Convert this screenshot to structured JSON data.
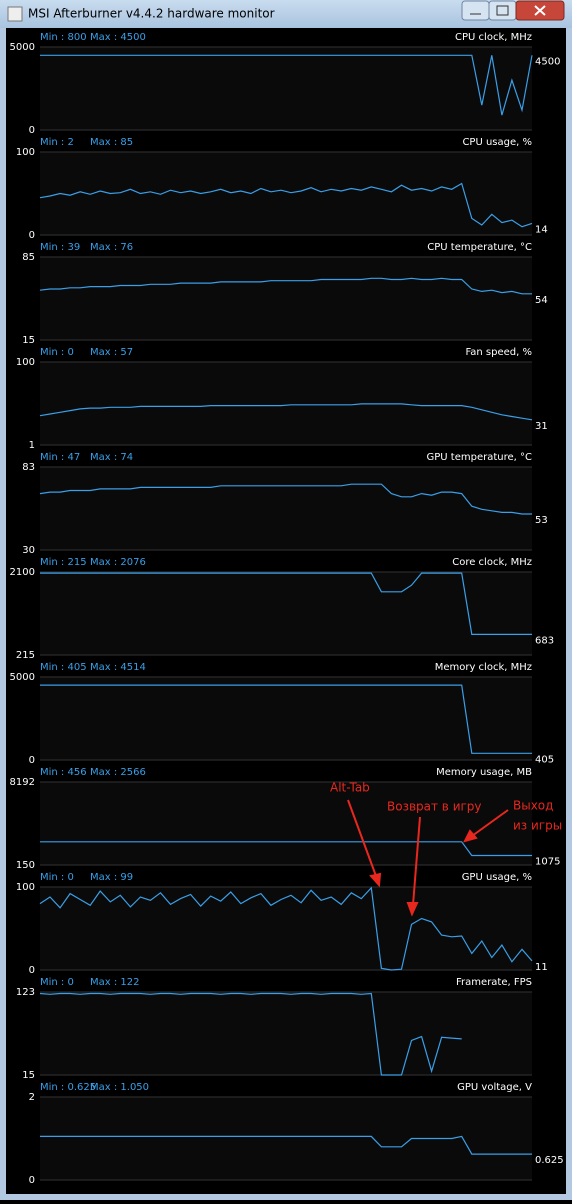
{
  "window": {
    "title": "MSI Afterburner v4.4.2 hardware monitor"
  },
  "annotations": [
    "Alt-Tab",
    "Возврат в игру",
    "Выход",
    "из игры"
  ],
  "chart_data": [
    {
      "type": "line",
      "title": "CPU clock, MHz",
      "min_text": "Min : 800",
      "max_text": "Max : 4500",
      "current": 4500,
      "ylim": [
        0,
        5000
      ],
      "yticks": [
        0,
        5000
      ],
      "color": "#3a9fe8",
      "values": [
        4500,
        4500,
        4500,
        4500,
        4500,
        4500,
        4500,
        4500,
        4500,
        4500,
        4500,
        4500,
        4500,
        4500,
        4500,
        4500,
        4500,
        4500,
        4500,
        4500,
        4500,
        4500,
        4500,
        4500,
        4500,
        4500,
        4500,
        4500,
        4500,
        4500,
        4500,
        4500,
        4500,
        4500,
        4500,
        4500,
        4500,
        4500,
        4500,
        4500,
        4500,
        4500,
        4500,
        4500,
        1500,
        4500,
        900,
        3000,
        1200,
        4500
      ]
    },
    {
      "type": "line",
      "title": "CPU usage, %",
      "min_text": "Min : 2",
      "max_text": "Max : 85",
      "current": 14,
      "ylim": [
        0,
        100
      ],
      "yticks": [
        0,
        100
      ],
      "color": "#3a9fe8",
      "values": [
        45,
        47,
        50,
        48,
        52,
        49,
        53,
        50,
        51,
        55,
        50,
        52,
        49,
        54,
        51,
        53,
        50,
        52,
        55,
        51,
        53,
        50,
        56,
        52,
        54,
        51,
        53,
        57,
        52,
        55,
        53,
        56,
        54,
        58,
        55,
        52,
        60,
        54,
        56,
        53,
        58,
        55,
        62,
        20,
        12,
        25,
        15,
        18,
        10,
        14
      ]
    },
    {
      "type": "line",
      "title": "CPU temperature, °C",
      "min_text": "Min : 39",
      "max_text": "Max : 76",
      "current": 54,
      "ylim": [
        15,
        85
      ],
      "yticks": [
        15,
        85
      ],
      "color": "#3a9fe8",
      "values": [
        57,
        58,
        58,
        59,
        59,
        60,
        60,
        60,
        61,
        61,
        61,
        62,
        62,
        62,
        63,
        63,
        63,
        63,
        64,
        64,
        64,
        64,
        64,
        65,
        65,
        65,
        65,
        65,
        66,
        66,
        66,
        66,
        66,
        67,
        67,
        66,
        66,
        67,
        66,
        66,
        67,
        66,
        66,
        58,
        56,
        57,
        55,
        56,
        54,
        54
      ]
    },
    {
      "type": "line",
      "title": "Fan speed, %",
      "min_text": "Min : 0",
      "max_text": "Max : 57",
      "current": 31,
      "ylim": [
        1,
        100
      ],
      "yticks": [
        1,
        100
      ],
      "color": "#3a9fe8",
      "values": [
        36,
        38,
        40,
        42,
        44,
        45,
        45,
        46,
        46,
        46,
        47,
        47,
        47,
        47,
        47,
        47,
        47,
        48,
        48,
        48,
        48,
        48,
        48,
        48,
        48,
        49,
        49,
        49,
        49,
        49,
        49,
        49,
        50,
        50,
        50,
        50,
        50,
        49,
        48,
        48,
        48,
        48,
        48,
        46,
        43,
        40,
        37,
        35,
        33,
        31
      ]
    },
    {
      "type": "line",
      "title": "GPU temperature, °C",
      "min_text": "Min : 47",
      "max_text": "Max : 74",
      "current": 53,
      "ylim": [
        30,
        83
      ],
      "yticks": [
        30,
        83
      ],
      "color": "#3a9fe8",
      "values": [
        66,
        67,
        67,
        68,
        68,
        68,
        69,
        69,
        69,
        69,
        70,
        70,
        70,
        70,
        70,
        70,
        70,
        70,
        71,
        71,
        71,
        71,
        71,
        71,
        71,
        71,
        71,
        71,
        71,
        71,
        71,
        72,
        72,
        72,
        72,
        66,
        64,
        64,
        66,
        65,
        67,
        67,
        66,
        58,
        56,
        55,
        54,
        54,
        53,
        53
      ]
    },
    {
      "type": "line",
      "title": "Core clock, MHz",
      "min_text": "Min : 215",
      "max_text": "Max : 2076",
      "current": 683,
      "ylim": [
        215,
        2100
      ],
      "yticks": [
        215,
        2100
      ],
      "color": "#3a9fe8",
      "values": [
        2076,
        2076,
        2076,
        2076,
        2076,
        2076,
        2076,
        2076,
        2076,
        2076,
        2076,
        2076,
        2076,
        2076,
        2076,
        2076,
        2076,
        2076,
        2076,
        2076,
        2076,
        2076,
        2076,
        2076,
        2076,
        2076,
        2076,
        2076,
        2076,
        2076,
        2076,
        2076,
        2076,
        2076,
        1650,
        1650,
        1650,
        1800,
        2076,
        2076,
        2076,
        2076,
        2076,
        683,
        683,
        683,
        683,
        683,
        683,
        683
      ]
    },
    {
      "type": "line",
      "title": "Memory clock, MHz",
      "min_text": "Min : 405",
      "max_text": "Max : 4514",
      "current": 405,
      "ylim": [
        0,
        5000
      ],
      "yticks": [
        0,
        5000
      ],
      "color": "#3a9fe8",
      "values": [
        4514,
        4514,
        4514,
        4514,
        4514,
        4514,
        4514,
        4514,
        4514,
        4514,
        4514,
        4514,
        4514,
        4514,
        4514,
        4514,
        4514,
        4514,
        4514,
        4514,
        4514,
        4514,
        4514,
        4514,
        4514,
        4514,
        4514,
        4514,
        4514,
        4514,
        4514,
        4514,
        4514,
        4514,
        4514,
        4514,
        4514,
        4514,
        4514,
        4514,
        4514,
        4514,
        4514,
        405,
        405,
        405,
        405,
        405,
        405,
        405
      ]
    },
    {
      "type": "line",
      "title": "Memory usage, MB",
      "min_text": "Min : 456",
      "max_text": "Max : 2566",
      "current": 1075,
      "ylim": [
        150,
        8192
      ],
      "yticks": [
        150,
        8192
      ],
      "color": "#3a9fe8",
      "values": [
        2400,
        2400,
        2400,
        2400,
        2400,
        2400,
        2400,
        2400,
        2400,
        2400,
        2400,
        2400,
        2400,
        2400,
        2400,
        2400,
        2400,
        2400,
        2400,
        2400,
        2400,
        2400,
        2400,
        2400,
        2400,
        2400,
        2400,
        2400,
        2400,
        2400,
        2400,
        2400,
        2400,
        2400,
        2400,
        2400,
        2400,
        2400,
        2400,
        2400,
        2400,
        2400,
        2400,
        1075,
        1075,
        1075,
        1075,
        1075,
        1075,
        1075
      ]
    },
    {
      "type": "line",
      "title": "GPU usage, %",
      "min_text": "Min : 0",
      "max_text": "Max : 99",
      "current": 11,
      "ylim": [
        0,
        100
      ],
      "yticks": [
        0,
        100
      ],
      "color": "#3a9fe8",
      "values": [
        80,
        88,
        75,
        92,
        85,
        78,
        95,
        82,
        90,
        76,
        88,
        84,
        93,
        79,
        86,
        91,
        77,
        89,
        83,
        94,
        80,
        87,
        92,
        78,
        85,
        90,
        81,
        96,
        84,
        88,
        79,
        93,
        86,
        99,
        2,
        0,
        1,
        55,
        62,
        58,
        42,
        40,
        41,
        20,
        35,
        15,
        30,
        10,
        25,
        11
      ]
    },
    {
      "type": "line",
      "title": "Framerate, FPS",
      "min_text": "Min : 0",
      "max_text": "Max : 122",
      "current": null,
      "ylim": [
        15,
        123
      ],
      "yticks": [
        15,
        123
      ],
      "color": "#3a9fe8",
      "values": [
        121,
        120,
        121,
        121,
        120,
        121,
        121,
        120,
        121,
        121,
        121,
        120,
        121,
        121,
        120,
        121,
        121,
        121,
        120,
        121,
        121,
        120,
        121,
        121,
        121,
        120,
        121,
        121,
        120,
        121,
        121,
        121,
        120,
        121,
        15,
        15,
        15,
        60,
        65,
        20,
        64,
        63,
        62,
        null,
        null,
        null,
        null,
        null,
        null,
        null
      ]
    },
    {
      "type": "line",
      "title": "GPU voltage, V",
      "min_text": "Min : 0.625",
      "max_text": "Max : 1.050",
      "current": 0.625,
      "ylim": [
        0,
        2
      ],
      "yticks": [
        0,
        2
      ],
      "color": "#3a9fe8",
      "values": [
        1.05,
        1.05,
        1.05,
        1.05,
        1.05,
        1.05,
        1.05,
        1.05,
        1.05,
        1.05,
        1.05,
        1.05,
        1.05,
        1.05,
        1.05,
        1.05,
        1.05,
        1.05,
        1.05,
        1.05,
        1.05,
        1.05,
        1.05,
        1.05,
        1.05,
        1.05,
        1.05,
        1.05,
        1.05,
        1.05,
        1.05,
        1.05,
        1.05,
        1.05,
        0.8,
        0.8,
        0.8,
        1.0,
        1.0,
        1.0,
        1.0,
        1.0,
        1.05,
        0.625,
        0.625,
        0.625,
        0.625,
        0.625,
        0.625,
        0.625
      ]
    }
  ]
}
